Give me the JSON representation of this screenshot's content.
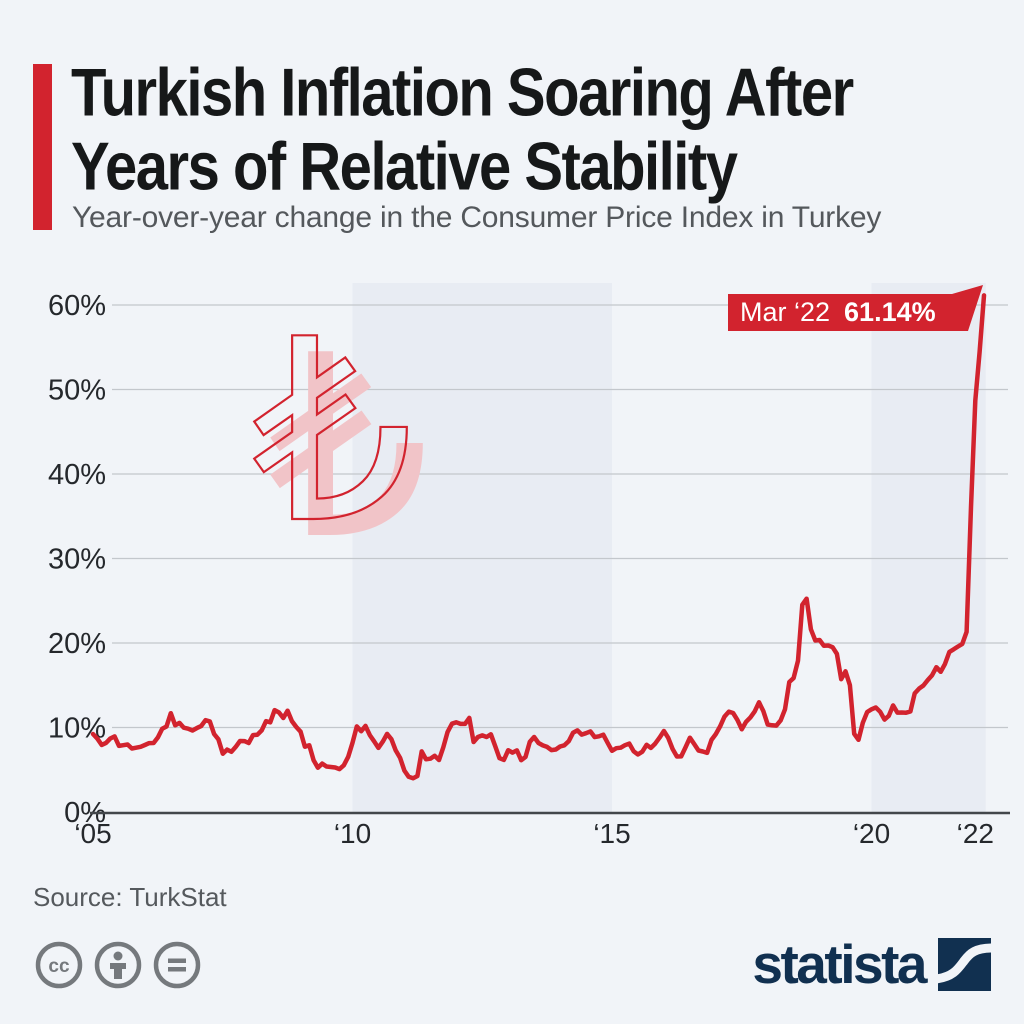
{
  "header": {
    "title_line1": "Turkish Inflation Soaring After",
    "title_line2": "Years of Relative Stability",
    "subtitle": "Year-over-year change in the Consumer Price Index in Turkey"
  },
  "footer": {
    "source": "Source: TurkStat",
    "brand": "statista",
    "license_badges": [
      "cc",
      "attribution",
      "equal"
    ]
  },
  "colors": {
    "background": "#f1f4f8",
    "band": "#e8ecf3",
    "accent_red": "#d2232e",
    "watermark_pink": "#f1c4c8",
    "gridline": "#c3c7cc",
    "axis": "#43474b",
    "navy": "#113050",
    "gray_text": "#54585c",
    "icon_gray": "#75797d"
  },
  "chart_data": {
    "type": "line",
    "title": "Turkish Inflation Soaring After Years of Relative Stability",
    "subtitle": "Year-over-year change in the Consumer Price Index in Turkey",
    "xlabel": "",
    "ylabel": "",
    "ylim": [
      0,
      63
    ],
    "x_range_years": [
      2005.0,
      2022.25
    ],
    "grid": "horizontal",
    "legend_position": "none",
    "watermark": "₺",
    "y_ticks": [
      {
        "label": "0%",
        "value": 0
      },
      {
        "label": "10%",
        "value": 10
      },
      {
        "label": "20%",
        "value": 20
      },
      {
        "label": "30%",
        "value": 30
      },
      {
        "label": "40%",
        "value": 40
      },
      {
        "label": "50%",
        "value": 50
      },
      {
        "label": "60%",
        "value": 60
      }
    ],
    "x_ticks": [
      {
        "label": "‘05",
        "year": 2005
      },
      {
        "label": "‘10",
        "year": 2010
      },
      {
        "label": "‘15",
        "year": 2015
      },
      {
        "label": "‘20",
        "year": 2020
      },
      {
        "label": "‘22",
        "year": 2022
      }
    ],
    "shaded_bands": [
      {
        "from_year": 2010,
        "to_year": 2015
      },
      {
        "from_year": 2020,
        "to_year": 2022.2
      }
    ],
    "annotation": {
      "label": "Mar ‘22",
      "value": "61.14%"
    },
    "series": [
      {
        "name": "CPI year-over-year change",
        "color": "#d2232e",
        "start_year": 2005,
        "start_month": 1,
        "frequency": "monthly",
        "values": [
          9.23,
          8.69,
          7.94,
          8.18,
          8.7,
          8.95,
          7.82,
          7.91,
          7.99,
          7.52,
          7.61,
          7.72,
          7.93,
          8.15,
          8.16,
          8.83,
          9.86,
          10.12,
          11.69,
          10.26,
          10.55,
          9.98,
          9.86,
          9.65,
          9.93,
          10.16,
          10.86,
          10.72,
          9.23,
          8.6,
          6.9,
          7.39,
          7.12,
          7.7,
          8.4,
          8.39,
          8.17,
          9.1,
          9.15,
          9.66,
          10.74,
          10.61,
          12.06,
          11.77,
          11.13,
          11.99,
          10.76,
          10.06,
          9.5,
          7.73,
          7.89,
          6.13,
          5.24,
          5.73,
          5.39,
          5.33,
          5.27,
          5.08,
          5.53,
          6.53,
          8.19,
          10.13,
          9.56,
          10.19,
          9.1,
          8.37,
          7.58,
          8.33,
          9.24,
          8.62,
          7.29,
          6.4,
          4.9,
          4.16,
          3.99,
          4.26,
          7.17,
          6.24,
          6.31,
          6.65,
          6.15,
          7.66,
          9.48,
          10.45,
          10.61,
          10.43,
          10.43,
          11.14,
          8.28,
          8.87,
          9.07,
          8.88,
          9.19,
          7.8,
          6.37,
          6.16,
          7.31,
          7.03,
          7.29,
          6.13,
          6.51,
          8.3,
          8.88,
          8.17,
          7.88,
          7.71,
          7.32,
          7.4,
          7.75,
          7.89,
          8.39,
          9.38,
          9.66,
          9.16,
          9.32,
          9.54,
          8.86,
          8.96,
          9.15,
          8.17,
          7.24,
          7.55,
          7.61,
          7.91,
          8.09,
          7.2,
          6.81,
          7.14,
          7.95,
          7.58,
          8.1,
          8.81,
          9.58,
          8.78,
          7.46,
          6.57,
          6.58,
          7.64,
          8.79,
          8.05,
          7.28,
          7.16,
          7.0,
          8.53,
          9.22,
          10.13,
          11.29,
          11.87,
          11.72,
          10.9,
          9.79,
          10.68,
          11.2,
          11.9,
          12.98,
          11.92,
          10.35,
          10.26,
          10.23,
          10.85,
          12.15,
          15.39,
          15.85,
          17.9,
          24.52,
          25.24,
          21.62,
          20.3,
          20.35,
          19.67,
          19.71,
          19.5,
          18.71,
          15.72,
          16.65,
          15.01,
          9.26,
          8.55,
          10.56,
          11.84,
          12.15,
          12.37,
          11.86,
          10.94,
          11.39,
          12.62,
          11.76,
          11.77,
          11.75,
          11.89,
          14.03,
          14.6,
          14.97,
          15.61,
          16.19,
          17.14,
          16.59,
          17.53,
          18.95,
          19.25,
          19.58,
          19.89,
          21.31,
          36.08,
          48.69,
          54.44,
          61.14
        ]
      }
    ]
  }
}
